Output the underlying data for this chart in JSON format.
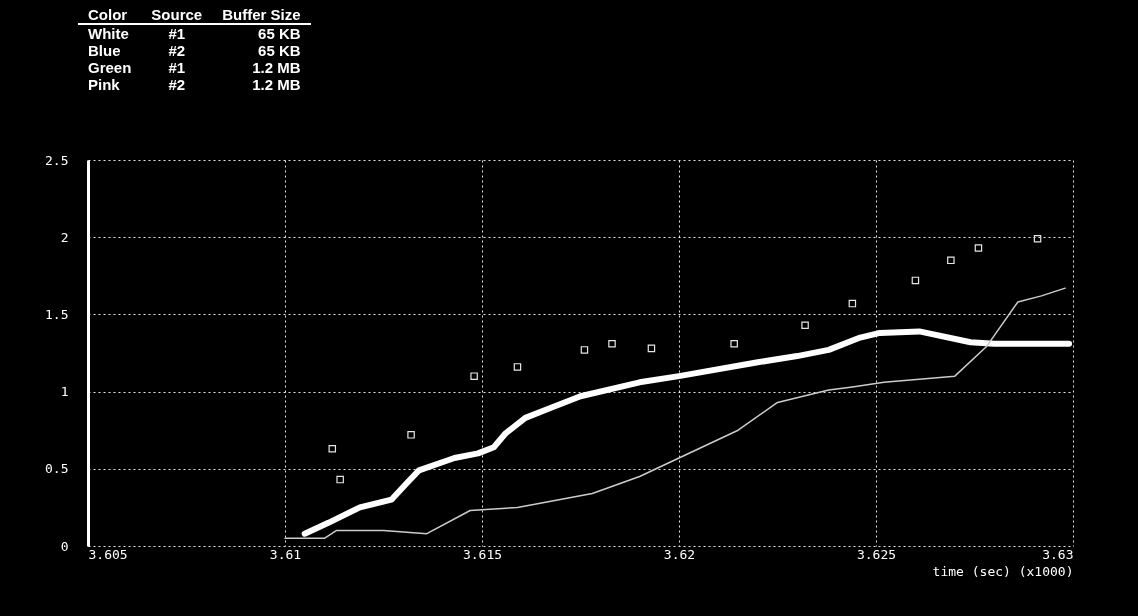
{
  "chart_data": {
    "type": "line",
    "xlabel": "time (sec) (x1000)",
    "annotations": [
      "Color",
      "Source",
      "Buffer Size",
      "White",
      "#1",
      "65 KB",
      "Blue",
      "#2",
      "65 KB",
      "Green",
      "#1",
      "1.2 MB",
      "Pink",
      "#2",
      "1.2 MB"
    ],
    "xlim": [
      3.605,
      3.63
    ],
    "xticks": [
      3.605,
      3.61,
      3.615,
      3.62,
      3.625,
      3.63
    ],
    "ylim": [
      0,
      2.5
    ],
    "yticks": [
      0,
      0.5,
      1,
      1.5,
      2,
      2.5
    ],
    "grid": true,
    "series": [
      {
        "color": "#ffffff",
        "x": [
          3.6105,
          3.6111,
          3.6119,
          3.6127,
          3.6131,
          3.6134,
          3.6143,
          3.6149,
          3.6153,
          3.6156,
          3.6161,
          3.6168,
          3.6175,
          3.619,
          3.62,
          3.622,
          3.623,
          3.6238,
          3.6246,
          3.6251,
          3.6261,
          3.6274,
          3.628,
          3.6299
        ],
        "values": [
          0.08,
          0.15,
          0.25,
          0.3,
          0.41,
          0.49,
          0.57,
          0.6,
          0.64,
          0.73,
          0.83,
          0.9,
          0.97,
          1.06,
          1.1,
          1.19,
          1.23,
          1.27,
          1.35,
          1.38,
          1.39,
          1.32,
          1.31,
          1.31
        ]
      },
      {
        "color": "#cccccc",
        "x": [
          3.61,
          3.611,
          3.6113,
          3.6125,
          3.6136,
          3.6147,
          3.6159,
          3.6178,
          3.619,
          3.62,
          3.6215,
          3.6225,
          3.6238,
          3.6244,
          3.6252,
          3.627,
          3.6278,
          3.6286,
          3.6292,
          3.6298
        ],
        "values": [
          0.05,
          0.05,
          0.1,
          0.1,
          0.08,
          0.23,
          0.25,
          0.34,
          0.45,
          0.57,
          0.75,
          0.93,
          1.01,
          1.03,
          1.06,
          1.1,
          1.29,
          1.58,
          1.62,
          1.67
        ]
      },
      {
        "type": "scatter",
        "color": "#e6e6e6",
        "x": [
          3.6112,
          3.6114,
          3.6132,
          3.6148,
          3.6159,
          3.6176,
          3.6183,
          3.6193,
          3.6214,
          3.6232,
          3.6244,
          3.626,
          3.6269,
          3.6276,
          3.6291
        ],
        "values": [
          0.63,
          0.43,
          0.72,
          1.1,
          1.16,
          1.27,
          1.31,
          1.28,
          1.31,
          1.43,
          1.57,
          1.72,
          1.85,
          1.93,
          1.99
        ]
      }
    ]
  }
}
